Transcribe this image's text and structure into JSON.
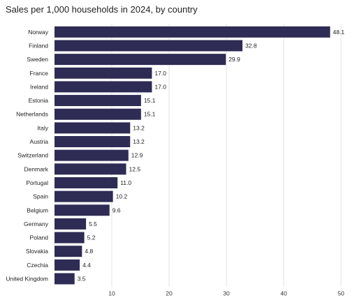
{
  "chart_data": {
    "type": "bar",
    "orientation": "horizontal",
    "title": "Sales per 1,000 households in 2024, by country",
    "xlabel": "",
    "ylabel": "",
    "xlim": [
      0,
      50
    ],
    "xticks": [
      10,
      20,
      30,
      40,
      50
    ],
    "grid": "vertical",
    "bar_color": "#2e2b54",
    "categories": [
      "Norway",
      "Finland",
      "Sweden",
      "France",
      "Ireland",
      "Estonia",
      "Netherlands",
      "Italy",
      "Austria",
      "Switzerland",
      "Denmark",
      "Portugal",
      "Spain",
      "Belgium",
      "Germany",
      "Poland",
      "Slovakia",
      "Czechia",
      "United Kingdom"
    ],
    "values": [
      48.1,
      32.8,
      29.9,
      17.0,
      17.0,
      15.1,
      15.1,
      13.2,
      13.2,
      12.9,
      12.5,
      11.0,
      10.2,
      9.6,
      5.5,
      5.2,
      4.8,
      4.4,
      3.5
    ],
    "value_labels": [
      "48.1",
      "32.8",
      "29.9",
      "17.0",
      "17.0",
      "15.1",
      "15.1",
      "13.2",
      "13.2",
      "12.9",
      "12.5",
      "11.0",
      "10.2",
      "9.6",
      "5.5",
      "5.2",
      "4.8",
      "4.4",
      "3.5"
    ]
  }
}
